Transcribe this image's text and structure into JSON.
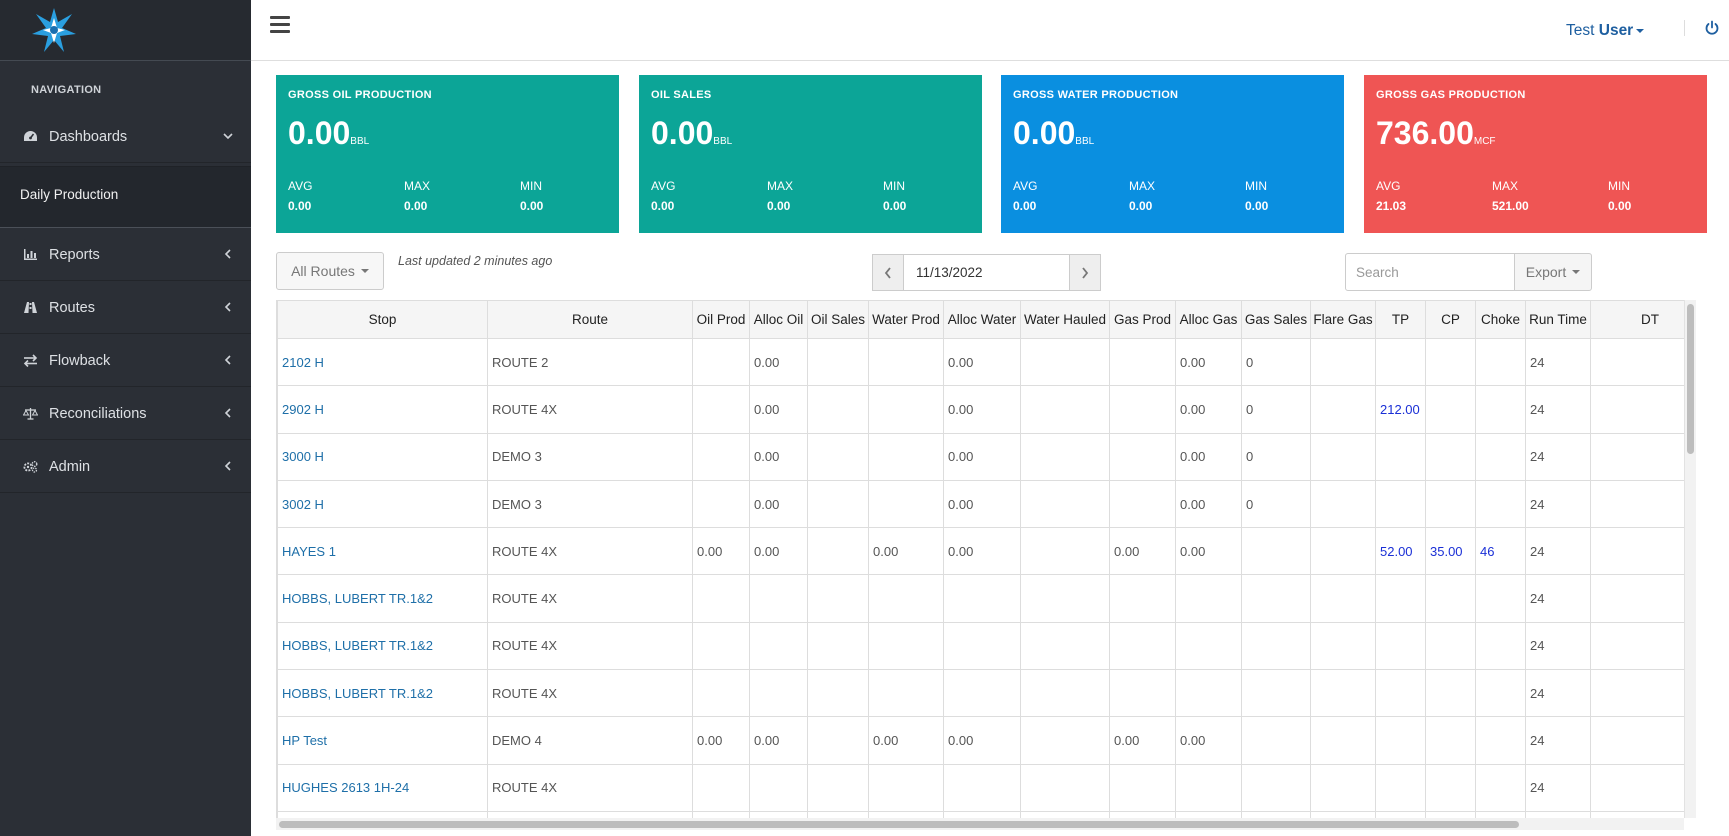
{
  "sidebar": {
    "nav_heading": "NAVIGATION",
    "items": [
      {
        "label": "Dashboards",
        "icon": "dashboard-icon"
      },
      {
        "label": "Reports",
        "icon": "bar-chart-icon"
      },
      {
        "label": "Routes",
        "icon": "road-icon"
      },
      {
        "label": "Flowback",
        "icon": "exchange-icon"
      },
      {
        "label": "Reconciliations",
        "icon": "balance-scale-icon"
      },
      {
        "label": "Admin",
        "icon": "gears-icon"
      }
    ],
    "active_sub": "Daily Production"
  },
  "header": {
    "user_first": "Test",
    "user_last": "User",
    "power_icon": "power-icon"
  },
  "cards": [
    {
      "title": "GROSS OIL PRODUCTION",
      "value": "0.00",
      "unit": "BBL",
      "avg_label": "AVG",
      "avg": "0.00",
      "max_label": "MAX",
      "max": "0.00",
      "min_label": "MIN",
      "min": "0.00",
      "color": "#0ca597"
    },
    {
      "title": "OIL SALES",
      "value": "0.00",
      "unit": "BBL",
      "avg_label": "AVG",
      "avg": "0.00",
      "max_label": "MAX",
      "max": "0.00",
      "min_label": "MIN",
      "min": "0.00",
      "color": "#0ca597"
    },
    {
      "title": "GROSS WATER PRODUCTION",
      "value": "0.00",
      "unit": "BBL",
      "avg_label": "AVG",
      "avg": "0.00",
      "max_label": "MAX",
      "max": "0.00",
      "min_label": "MIN",
      "min": "0.00",
      "color": "#0a8fe0"
    },
    {
      "title": "GROSS GAS PRODUCTION",
      "value": "736.00",
      "unit": "MCF",
      "avg_label": "AVG",
      "avg": "21.03",
      "max_label": "MAX",
      "max": "521.00",
      "min_label": "MIN",
      "min": "0.00",
      "color": "#ef5554"
    }
  ],
  "toolbar": {
    "routes_label": "All Routes",
    "last_updated": "Last updated 2 minutes ago",
    "date": "11/13/2022",
    "search_placeholder": "Search",
    "export_label": "Export"
  },
  "table": {
    "columns": [
      "Stop",
      "Route",
      "Oil Prod",
      "Alloc Oil",
      "Oil Sales",
      "Water Prod",
      "Alloc Water",
      "Water Hauled",
      "Gas Prod",
      "Alloc Gas",
      "Gas Sales",
      "Flare Gas",
      "TP",
      "CP",
      "Choke",
      "Run Time",
      "DT"
    ],
    "rows": [
      [
        "2102 H",
        "ROUTE 2",
        "",
        "0.00",
        "",
        "",
        "0.00",
        "",
        "",
        "0.00",
        "0",
        "",
        "",
        "",
        "",
        "24",
        ""
      ],
      [
        "2902 H",
        "ROUTE 4X",
        "",
        "0.00",
        "",
        "",
        "0.00",
        "",
        "",
        "0.00",
        "0",
        "",
        "212.00",
        "",
        "",
        "24",
        ""
      ],
      [
        "3000 H",
        "DEMO 3",
        "",
        "0.00",
        "",
        "",
        "0.00",
        "",
        "",
        "0.00",
        "0",
        "",
        "",
        "",
        "",
        "24",
        ""
      ],
      [
        "3002 H",
        "DEMO 3",
        "",
        "0.00",
        "",
        "",
        "0.00",
        "",
        "",
        "0.00",
        "0",
        "",
        "",
        "",
        "",
        "24",
        ""
      ],
      [
        "HAYES 1",
        "ROUTE 4X",
        "0.00",
        "0.00",
        "",
        "0.00",
        "0.00",
        "",
        "0.00",
        "0.00",
        "",
        "",
        "52.00",
        "35.00",
        "46",
        "24",
        ""
      ],
      [
        "HOBBS, LUBERT TR.1&2",
        "ROUTE 4X",
        "",
        "",
        "",
        "",
        "",
        "",
        "",
        "",
        "",
        "",
        "",
        "",
        "",
        "24",
        ""
      ],
      [
        "HOBBS, LUBERT TR.1&2",
        "ROUTE 4X",
        "",
        "",
        "",
        "",
        "",
        "",
        "",
        "",
        "",
        "",
        "",
        "",
        "",
        "24",
        ""
      ],
      [
        "HOBBS, LUBERT TR.1&2",
        "ROUTE 4X",
        "",
        "",
        "",
        "",
        "",
        "",
        "",
        "",
        "",
        "",
        "",
        "",
        "",
        "24",
        ""
      ],
      [
        "HP Test",
        "DEMO 4",
        "0.00",
        "0.00",
        "",
        "0.00",
        "0.00",
        "",
        "0.00",
        "0.00",
        "",
        "",
        "",
        "",
        "",
        "24",
        ""
      ],
      [
        "HUGHES 2613 1H-24",
        "ROUTE 4X",
        "",
        "",
        "",
        "",
        "",
        "",
        "",
        "",
        "",
        "",
        "",
        "",
        "",
        "24",
        ""
      ],
      [
        "",
        "",
        "",
        "",
        "",
        "",
        "",
        "",
        "",
        "",
        "",
        "",
        "",
        "",
        "",
        "",
        ""
      ]
    ]
  }
}
